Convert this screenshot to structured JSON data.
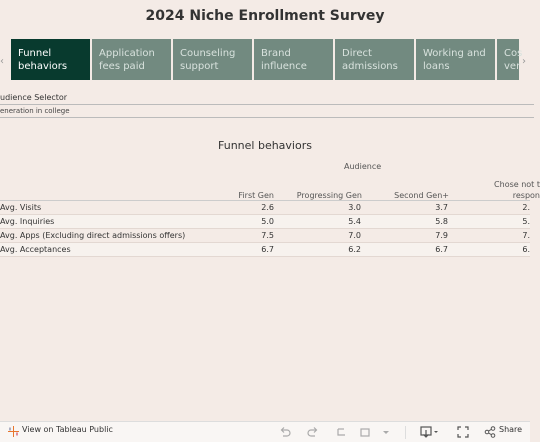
{
  "title": "2024 Niche Enrollment Survey",
  "tabs": [
    {
      "label": "Funnel behaviors",
      "active": true
    },
    {
      "label": "Application fees paid",
      "active": false
    },
    {
      "label": "Counseling support",
      "active": false
    },
    {
      "label": "Brand influence",
      "active": false
    },
    {
      "label": "Direct admissions",
      "active": false
    },
    {
      "label": "Working and loans",
      "active": false
    },
    {
      "label": "Cos ver",
      "active": false
    }
  ],
  "selector": {
    "label": "udience Selector",
    "value": "eneration in college"
  },
  "section_title": "Funnel behaviors",
  "table": {
    "group_header": "Audience",
    "columns": [
      "First Gen",
      "Progressing Gen",
      "Second Gen+",
      "Chose not t respon"
    ],
    "rows": [
      {
        "label": "Avg. Visits",
        "values": [
          "2.6",
          "3.0",
          "3.7",
          "2."
        ]
      },
      {
        "label": "Avg. Inquiries",
        "values": [
          "5.0",
          "5.4",
          "5.8",
          "5."
        ]
      },
      {
        "label": "Avg. Apps (Excluding direct admissions offers)",
        "values": [
          "7.5",
          "7.0",
          "7.9",
          "7."
        ]
      },
      {
        "label": "Avg. Acceptances",
        "values": [
          "6.7",
          "6.2",
          "6.7",
          "6."
        ]
      }
    ]
  },
  "footer": {
    "view_label": "View on Tableau Public",
    "share_label": "Share",
    "icons": [
      "tableau-icon",
      "undo-icon",
      "redo-icon",
      "revert-icon",
      "download-icon",
      "fullscreen-icon",
      "share-icon"
    ]
  }
}
